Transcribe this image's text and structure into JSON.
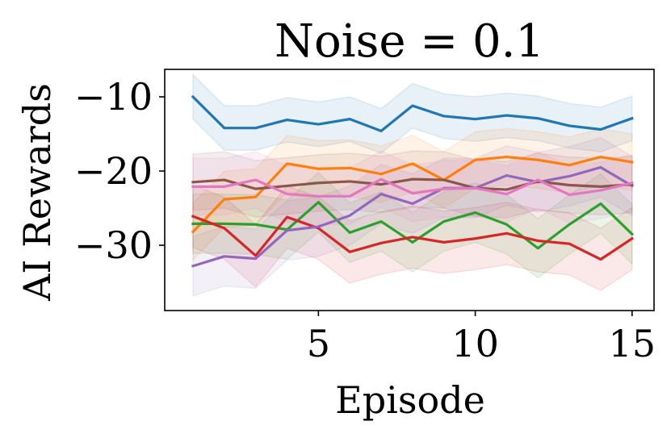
{
  "chart_data": {
    "type": "line",
    "title": "Noise = 0.1",
    "xlabel": "Episode",
    "ylabel": "AI Rewards",
    "xlim": [
      0.1,
      15.7
    ],
    "ylim": [
      -38.8,
      -6.3
    ],
    "xticks": [
      5,
      10,
      15
    ],
    "xtick_labels": [
      "5",
      "10",
      "15"
    ],
    "yticks": [
      -10,
      -20,
      -30
    ],
    "ytick_labels": [
      "−10",
      "−20",
      "−30"
    ],
    "grid": false,
    "x": [
      1,
      2,
      3,
      4,
      5,
      6,
      7,
      8,
      9,
      10,
      11,
      12,
      13,
      14,
      15
    ],
    "series": [
      {
        "name": "blue",
        "color": "#1f77b4",
        "values": [
          -10.0,
          -14.2,
          -14.2,
          -13.1,
          -13.7,
          -13.0,
          -14.6,
          -11.2,
          -12.6,
          -13.0,
          -12.5,
          -12.9,
          -13.9,
          -14.4,
          -12.9
        ],
        "band_half_width": 3.0
      },
      {
        "name": "orange",
        "color": "#ff7f0e",
        "values": [
          -28.2,
          -23.8,
          -23.5,
          -19.0,
          -19.7,
          -19.6,
          -20.4,
          -19.0,
          -21.2,
          -18.5,
          -18.1,
          -18.5,
          -19.2,
          -18.1,
          -18.8
        ],
        "band_half_width": 3.8
      },
      {
        "name": "green",
        "color": "#2ca02c",
        "values": [
          -27.1,
          -27.1,
          -27.2,
          -27.9,
          -24.2,
          -28.3,
          -26.8,
          -29.6,
          -26.8,
          -25.6,
          -27.2,
          -30.4,
          -27.2,
          -24.4,
          -28.5
        ],
        "band_half_width": 4.0
      },
      {
        "name": "red",
        "color": "#d62728",
        "values": [
          -26.1,
          -27.7,
          -31.4,
          -26.2,
          -27.7,
          -30.9,
          -29.7,
          -28.9,
          -29.6,
          -29.1,
          -28.4,
          -29.4,
          -29.8,
          -31.9,
          -29.1
        ],
        "band_half_width": 4.2
      },
      {
        "name": "purple",
        "color": "#9467bd",
        "values": [
          -32.8,
          -31.5,
          -31.8,
          -28.0,
          -27.5,
          -26.0,
          -23.1,
          -24.4,
          -22.3,
          -22.3,
          -20.6,
          -21.5,
          -20.7,
          -19.5,
          -22.0
        ],
        "band_half_width": 4.0
      },
      {
        "name": "brown",
        "color": "#8c564b",
        "values": [
          -21.5,
          -21.2,
          -22.4,
          -22.0,
          -21.6,
          -21.4,
          -21.8,
          -21.1,
          -21.2,
          -22.3,
          -22.5,
          -21.4,
          -21.9,
          -22.1,
          -21.8
        ],
        "band_half_width": 3.8
      },
      {
        "name": "pink",
        "color": "#e377c2",
        "values": [
          -22.1,
          -22.1,
          -21.2,
          -23.1,
          -23.4,
          -23.4,
          -21.1,
          -23.0,
          -22.4,
          -22.3,
          -23.1,
          -21.2,
          -23.2,
          -22.6,
          -21.6
        ],
        "band_half_width": 3.8
      }
    ]
  }
}
